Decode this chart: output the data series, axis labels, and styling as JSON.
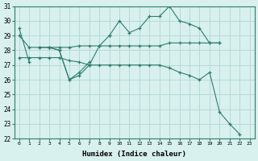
{
  "xlabel": "Humidex (Indice chaleur)",
  "x": [
    0,
    1,
    2,
    3,
    4,
    5,
    6,
    7,
    8,
    9,
    10,
    11,
    12,
    13,
    14,
    15,
    16,
    17,
    18,
    19,
    20,
    21,
    22,
    23
  ],
  "line1": [
    29.5,
    27.2,
    null,
    28.2,
    28.0,
    26.0,
    26.5,
    27.2,
    null,
    29.0,
    30.0,
    29.2,
    29.5,
    30.3,
    30.3,
    31.0,
    30.0,
    29.8,
    29.5,
    28.5,
    28.5,
    null,
    null,
    null
  ],
  "line2": [
    null,
    null,
    28.2,
    28.2,
    28.0,
    26.0,
    26.3,
    27.0,
    28.3,
    29.0,
    null,
    null,
    null,
    null,
    null,
    null,
    null,
    null,
    null,
    null,
    null,
    null,
    null,
    null
  ],
  "line3": [
    29.0,
    28.2,
    28.2,
    28.2,
    28.2,
    28.2,
    28.3,
    28.3,
    28.3,
    28.3,
    28.3,
    28.3,
    28.3,
    28.3,
    28.3,
    28.5,
    28.5,
    28.5,
    28.5,
    28.5,
    28.5,
    null,
    null,
    null
  ],
  "line4": [
    27.5,
    27.5,
    27.5,
    27.5,
    27.5,
    27.3,
    27.2,
    27.0,
    27.0,
    27.0,
    27.0,
    27.0,
    27.0,
    27.0,
    27.0,
    26.8,
    26.5,
    26.3,
    26.0,
    26.5,
    23.8,
    23.0,
    22.3,
    null
  ],
  "color": "#2e7d6e",
  "bg_color": "#d8f0ee",
  "grid_color": "#b0d8d4",
  "ylim": [
    22,
    31
  ],
  "yticks": [
    22,
    23,
    24,
    25,
    26,
    27,
    28,
    29,
    30,
    31
  ]
}
